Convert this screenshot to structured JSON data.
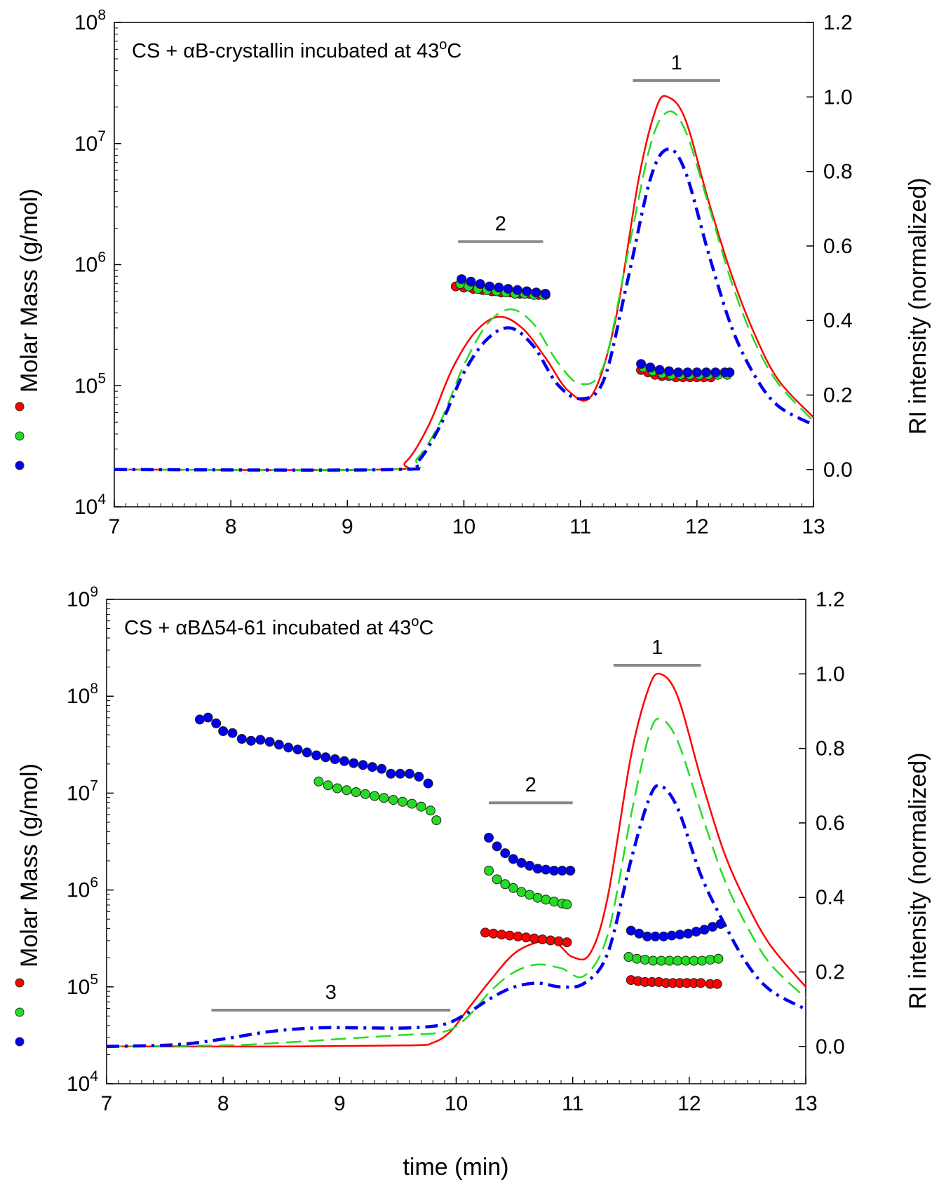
{
  "xlabel": "time (min)",
  "legend_left": "Molar Mass (g/mol)",
  "legend_right": "RI intensity (normalized)",
  "colors": {
    "red": "#ff0000",
    "green": "#22dd22",
    "blue": "#0000ee",
    "bar": "#888888"
  },
  "chart_data": [
    {
      "type": "scatter+line",
      "title": "CS + αB-crystallin incubated at 43°C",
      "title_pre": "CS + αB-crystallin incubated at 43",
      "title_sup": "o",
      "title_post": "C",
      "xlim": [
        7,
        13
      ],
      "xticks": [
        "7",
        "8",
        "9",
        "10",
        "11",
        "12",
        "13"
      ],
      "ylim_left_log": [
        4,
        8
      ],
      "yticks_left": [
        "4",
        "5",
        "6",
        "7",
        "8"
      ],
      "ylim_right": [
        -0.1,
        1.2
      ],
      "yticks_right": [
        "0.0",
        "0.2",
        "0.4",
        "0.6",
        "0.8",
        "1.0",
        "1.2"
      ],
      "annotations": [
        {
          "label": "1",
          "x0": 11.45,
          "x1": 12.2,
          "y_log": 7.52
        },
        {
          "label": "2",
          "x0": 9.95,
          "x1": 10.68,
          "y_log": 6.19
        }
      ],
      "ri_series": [
        {
          "name": "red",
          "style": "solid",
          "points": [
            [
              7,
              0
            ],
            [
              9.3,
              0
            ],
            [
              9.5,
              0.02
            ],
            [
              9.7,
              0.12
            ],
            [
              9.9,
              0.27
            ],
            [
              10.1,
              0.37
            ],
            [
              10.3,
              0.41
            ],
            [
              10.5,
              0.38
            ],
            [
              10.7,
              0.3
            ],
            [
              10.9,
              0.21
            ],
            [
              11.1,
              0.2
            ],
            [
              11.3,
              0.4
            ],
            [
              11.5,
              0.78
            ],
            [
              11.65,
              0.97
            ],
            [
              11.75,
              1.0
            ],
            [
              11.9,
              0.94
            ],
            [
              12.1,
              0.72
            ],
            [
              12.3,
              0.52
            ],
            [
              12.5,
              0.36
            ],
            [
              12.7,
              0.24
            ],
            [
              13,
              0.14
            ]
          ]
        },
        {
          "name": "green",
          "style": "dashed",
          "points": [
            [
              7,
              0
            ],
            [
              9.4,
              0
            ],
            [
              9.6,
              0.03
            ],
            [
              9.8,
              0.13
            ],
            [
              10.0,
              0.28
            ],
            [
              10.2,
              0.39
            ],
            [
              10.4,
              0.43
            ],
            [
              10.6,
              0.39
            ],
            [
              10.8,
              0.29
            ],
            [
              11.0,
              0.23
            ],
            [
              11.2,
              0.28
            ],
            [
              11.4,
              0.57
            ],
            [
              11.6,
              0.87
            ],
            [
              11.75,
              0.96
            ],
            [
              11.9,
              0.91
            ],
            [
              12.1,
              0.71
            ],
            [
              12.3,
              0.5
            ],
            [
              12.5,
              0.34
            ],
            [
              12.7,
              0.23
            ],
            [
              13,
              0.13
            ]
          ]
        },
        {
          "name": "blue",
          "style": "dashdot",
          "points": [
            [
              7,
              0
            ],
            [
              9.4,
              0
            ],
            [
              9.6,
              0.02
            ],
            [
              9.8,
              0.12
            ],
            [
              10.0,
              0.26
            ],
            [
              10.2,
              0.35
            ],
            [
              10.4,
              0.38
            ],
            [
              10.6,
              0.33
            ],
            [
              10.8,
              0.23
            ],
            [
              11.0,
              0.19
            ],
            [
              11.2,
              0.24
            ],
            [
              11.4,
              0.5
            ],
            [
              11.6,
              0.78
            ],
            [
              11.75,
              0.86
            ],
            [
              11.9,
              0.8
            ],
            [
              12.1,
              0.58
            ],
            [
              12.3,
              0.38
            ],
            [
              12.5,
              0.25
            ],
            [
              12.7,
              0.17
            ],
            [
              13,
              0.12
            ]
          ]
        }
      ],
      "mass_series": [
        {
          "name": "red",
          "t": [
            9.93,
            10.0,
            10.08,
            10.16,
            10.24,
            10.32,
            10.4,
            10.48,
            10.56,
            10.64,
            10.7,
            11.52,
            11.58,
            11.64,
            11.7,
            11.76,
            11.82,
            11.88,
            11.94,
            12.0,
            12.06,
            12.12
          ],
          "log_mass": [
            5.82,
            5.81,
            5.8,
            5.79,
            5.78,
            5.77,
            5.77,
            5.76,
            5.76,
            5.75,
            5.75,
            5.13,
            5.11,
            5.09,
            5.08,
            5.08,
            5.07,
            5.07,
            5.07,
            5.07,
            5.07,
            5.07
          ]
        },
        {
          "name": "green",
          "t": [
            9.97,
            10.04,
            10.12,
            10.2,
            10.28,
            10.36,
            10.44,
            10.52,
            10.6,
            10.68,
            11.54,
            11.62,
            11.7,
            11.78,
            11.86,
            11.94,
            12.02,
            12.1,
            12.18,
            12.26
          ],
          "log_mass": [
            5.84,
            5.82,
            5.8,
            5.79,
            5.78,
            5.77,
            5.76,
            5.76,
            5.75,
            5.75,
            5.15,
            5.12,
            5.1,
            5.09,
            5.09,
            5.09,
            5.09,
            5.09,
            5.09,
            5.09
          ]
        },
        {
          "name": "blue",
          "t": [
            9.98,
            10.06,
            10.14,
            10.22,
            10.3,
            10.38,
            10.46,
            10.54,
            10.62,
            10.7,
            11.52,
            11.6,
            11.68,
            11.76,
            11.84,
            11.92,
            12.0,
            12.08,
            12.16,
            12.24,
            12.28
          ],
          "log_mass": [
            5.88,
            5.86,
            5.84,
            5.82,
            5.81,
            5.8,
            5.79,
            5.78,
            5.77,
            5.76,
            5.18,
            5.15,
            5.13,
            5.12,
            5.11,
            5.11,
            5.11,
            5.11,
            5.11,
            5.11,
            5.11
          ]
        }
      ]
    },
    {
      "type": "scatter+line",
      "title": "CS + αBΔ54-61 incubated at 43°C",
      "title_pre": "CS + αBΔ54-61 incubated at 43",
      "title_sup": "o",
      "title_post": "C",
      "xlim": [
        7,
        13
      ],
      "xticks": [
        "7",
        "8",
        "9",
        "10",
        "11",
        "12",
        "13"
      ],
      "ylim_left_log": [
        4,
        9
      ],
      "yticks_left": [
        "4",
        "5",
        "6",
        "7",
        "8",
        "9"
      ],
      "ylim_right": [
        -0.1,
        1.2
      ],
      "yticks_right": [
        "0.0",
        "0.2",
        "0.4",
        "0.6",
        "0.8",
        "1.0",
        "1.2"
      ],
      "annotations": [
        {
          "label": "1",
          "x0": 11.35,
          "x1": 12.1,
          "y_log": 8.32
        },
        {
          "label": "2",
          "x0": 10.28,
          "x1": 11.0,
          "y_log": 6.9
        },
        {
          "label": "3",
          "x0": 7.9,
          "x1": 9.95,
          "y_log": 4.76
        }
      ],
      "ri_series": [
        {
          "name": "red",
          "style": "solid",
          "points": [
            [
              7,
              0
            ],
            [
              8.5,
              0
            ],
            [
              9.6,
              0.003
            ],
            [
              9.8,
              0.01
            ],
            [
              9.95,
              0.04
            ],
            [
              10.1,
              0.1
            ],
            [
              10.3,
              0.18
            ],
            [
              10.5,
              0.25
            ],
            [
              10.7,
              0.28
            ],
            [
              10.85,
              0.28
            ],
            [
              11.0,
              0.24
            ],
            [
              11.15,
              0.25
            ],
            [
              11.3,
              0.4
            ],
            [
              11.5,
              0.78
            ],
            [
              11.65,
              0.96
            ],
            [
              11.75,
              1.0
            ],
            [
              11.9,
              0.94
            ],
            [
              12.1,
              0.72
            ],
            [
              12.3,
              0.52
            ],
            [
              12.5,
              0.38
            ],
            [
              12.7,
              0.27
            ],
            [
              13,
              0.16
            ]
          ]
        },
        {
          "name": "green",
          "style": "dashed",
          "points": [
            [
              7,
              0
            ],
            [
              8.0,
              0.003
            ],
            [
              8.5,
              0.01
            ],
            [
              9.0,
              0.02
            ],
            [
              9.5,
              0.03
            ],
            [
              9.9,
              0.04
            ],
            [
              10.1,
              0.08
            ],
            [
              10.3,
              0.15
            ],
            [
              10.5,
              0.2
            ],
            [
              10.7,
              0.22
            ],
            [
              10.9,
              0.21
            ],
            [
              11.1,
              0.19
            ],
            [
              11.3,
              0.3
            ],
            [
              11.5,
              0.62
            ],
            [
              11.65,
              0.83
            ],
            [
              11.75,
              0.88
            ],
            [
              11.9,
              0.82
            ],
            [
              12.1,
              0.63
            ],
            [
              12.3,
              0.45
            ],
            [
              12.5,
              0.32
            ],
            [
              12.7,
              0.22
            ],
            [
              13,
              0.13
            ]
          ]
        },
        {
          "name": "blue",
          "style": "dashdot",
          "points": [
            [
              7,
              0
            ],
            [
              7.6,
              0.005
            ],
            [
              8.0,
              0.02
            ],
            [
              8.4,
              0.04
            ],
            [
              8.8,
              0.05
            ],
            [
              9.2,
              0.05
            ],
            [
              9.6,
              0.05
            ],
            [
              9.9,
              0.06
            ],
            [
              10.1,
              0.09
            ],
            [
              10.3,
              0.13
            ],
            [
              10.5,
              0.16
            ],
            [
              10.7,
              0.17
            ],
            [
              10.9,
              0.16
            ],
            [
              11.1,
              0.17
            ],
            [
              11.3,
              0.25
            ],
            [
              11.5,
              0.5
            ],
            [
              11.65,
              0.66
            ],
            [
              11.75,
              0.7
            ],
            [
              11.9,
              0.64
            ],
            [
              12.1,
              0.46
            ],
            [
              12.3,
              0.33
            ],
            [
              12.5,
              0.22
            ],
            [
              12.7,
              0.15
            ],
            [
              13,
              0.1
            ]
          ]
        }
      ],
      "mass_series": [
        {
          "name": "red",
          "t": [
            10.25,
            10.32,
            10.39,
            10.46,
            10.53,
            10.6,
            10.67,
            10.74,
            10.81,
            10.88,
            10.95,
            11.5,
            11.56,
            11.62,
            11.68,
            11.74,
            11.8,
            11.86,
            11.92,
            11.98,
            12.04,
            12.1,
            12.18,
            12.24
          ],
          "log_mass": [
            5.56,
            5.55,
            5.54,
            5.53,
            5.52,
            5.51,
            5.5,
            5.49,
            5.48,
            5.47,
            5.46,
            5.07,
            5.06,
            5.05,
            5.05,
            5.05,
            5.04,
            5.04,
            5.04,
            5.04,
            5.04,
            5.04,
            5.03,
            5.03
          ]
        },
        {
          "name": "green",
          "t": [
            8.82,
            8.9,
            8.98,
            9.06,
            9.14,
            9.22,
            9.3,
            9.38,
            9.46,
            9.54,
            9.62,
            9.7,
            9.78,
            9.83,
            10.28,
            10.35,
            10.42,
            10.49,
            10.56,
            10.63,
            10.7,
            10.77,
            10.84,
            10.91,
            10.95,
            11.48,
            11.55,
            11.62,
            11.69,
            11.76,
            11.83,
            11.9,
            11.97,
            12.04,
            12.11,
            12.18,
            12.25
          ],
          "log_mass": [
            7.12,
            7.08,
            7.05,
            7.03,
            7.01,
            6.99,
            6.97,
            6.95,
            6.93,
            6.91,
            6.89,
            6.86,
            6.82,
            6.72,
            6.2,
            6.11,
            6.06,
            6.02,
            5.98,
            5.95,
            5.92,
            5.9,
            5.88,
            5.86,
            5.85,
            5.31,
            5.29,
            5.28,
            5.27,
            5.27,
            5.27,
            5.27,
            5.27,
            5.27,
            5.27,
            5.28,
            5.29
          ]
        },
        {
          "name": "blue",
          "t": [
            7.8,
            7.87,
            7.94,
            8.0,
            8.08,
            8.16,
            8.24,
            8.32,
            8.4,
            8.48,
            8.56,
            8.64,
            8.72,
            8.8,
            8.88,
            8.96,
            9.04,
            9.12,
            9.2,
            9.28,
            9.36,
            9.44,
            9.52,
            9.6,
            9.68,
            9.76,
            10.28,
            10.35,
            10.42,
            10.49,
            10.56,
            10.63,
            10.7,
            10.77,
            10.84,
            10.91,
            10.98,
            11.5,
            11.57,
            11.64,
            11.71,
            11.78,
            11.85,
            11.92,
            11.99,
            12.06,
            12.13,
            12.2,
            12.27
          ],
          "log_mass": [
            7.76,
            7.78,
            7.72,
            7.64,
            7.62,
            7.56,
            7.54,
            7.55,
            7.53,
            7.5,
            7.47,
            7.45,
            7.42,
            7.39,
            7.37,
            7.35,
            7.33,
            7.31,
            7.29,
            7.27,
            7.25,
            7.2,
            7.2,
            7.2,
            7.17,
            7.1,
            6.54,
            6.45,
            6.38,
            6.32,
            6.28,
            6.25,
            6.22,
            6.21,
            6.2,
            6.2,
            6.2,
            5.58,
            5.55,
            5.52,
            5.52,
            5.52,
            5.53,
            5.54,
            5.55,
            5.57,
            5.59,
            5.62,
            5.65
          ]
        }
      ]
    }
  ]
}
